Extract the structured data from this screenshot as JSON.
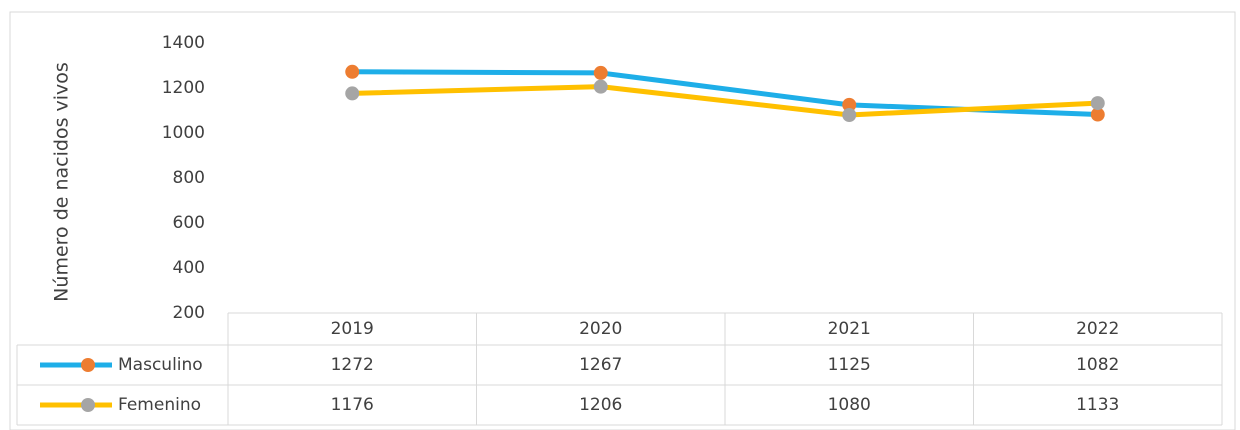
{
  "chart_data": {
    "type": "line",
    "y_label": "Número de nacidos vivos",
    "categories": [
      "2019",
      "2020",
      "2021",
      "2022"
    ],
    "series": [
      {
        "name": "Masculino",
        "color": "#1eaee8",
        "marker_color": "#ed7d31",
        "values": [
          1272,
          1267,
          1125,
          1082
        ]
      },
      {
        "name": "Femenino",
        "color": "#ffc000",
        "marker_color": "#a5a5a5",
        "values": [
          1176,
          1206,
          1080,
          1133
        ]
      }
    ],
    "ylim": [
      200,
      1400
    ],
    "yticks": [
      200,
      400,
      600,
      800,
      1000,
      1200,
      1400
    ],
    "grid": false
  }
}
